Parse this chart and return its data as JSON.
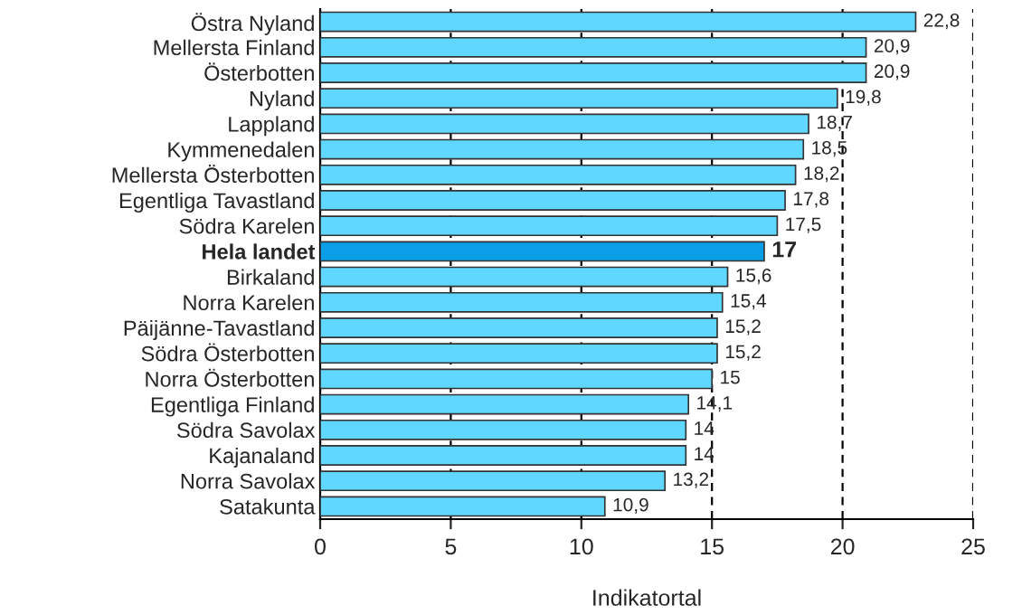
{
  "chart_data": {
    "type": "bar",
    "orientation": "horizontal",
    "xlabel": "Indikatortal",
    "categories": [
      "Östra Nyland",
      "Mellersta Finland",
      "Österbotten",
      "Nyland",
      "Lappland",
      "Kymmenedalen",
      "Mellersta Österbotten",
      "Egentliga Tavastland",
      "Södra Karelen",
      "Hela landet",
      "Birkaland",
      "Norra Karelen",
      "Päijänne-Tavastland",
      "Södra Österbotten",
      "Norra Österbotten",
      "Egentliga Finland",
      "Södra Savolax",
      "Kajanaland",
      "Norra Savolax",
      "Satakunta"
    ],
    "values": [
      22.8,
      20.9,
      20.9,
      19.8,
      18.7,
      18.5,
      18.2,
      17.8,
      17.5,
      17,
      15.6,
      15.4,
      15.2,
      15.2,
      15,
      14.1,
      14,
      14,
      13.2,
      10.9
    ],
    "value_labels": [
      "22,8",
      "20,9",
      "20,9",
      "19,8",
      "18,7",
      "18,5",
      "18,2",
      "17,8",
      "17,5",
      "17",
      "15,6",
      "15,4",
      "15,2",
      "15,2",
      "15",
      "14,1",
      "14",
      "14",
      "13,2",
      "10,9"
    ],
    "colors": [
      "#5fd7ff",
      "#5fd7ff",
      "#5fd7ff",
      "#5fd7ff",
      "#5fd7ff",
      "#5fd7ff",
      "#5fd7ff",
      "#5fd7ff",
      "#5fd7ff",
      "#0a9ee6",
      "#5fd7ff",
      "#5fd7ff",
      "#5fd7ff",
      "#5fd7ff",
      "#5fd7ff",
      "#5fd7ff",
      "#5fd7ff",
      "#5fd7ff",
      "#5fd7ff",
      "#5fd7ff"
    ],
    "xlim": [
      0,
      25
    ],
    "xticks": [
      0,
      5,
      10,
      15,
      20,
      25
    ],
    "grid": "x"
  }
}
